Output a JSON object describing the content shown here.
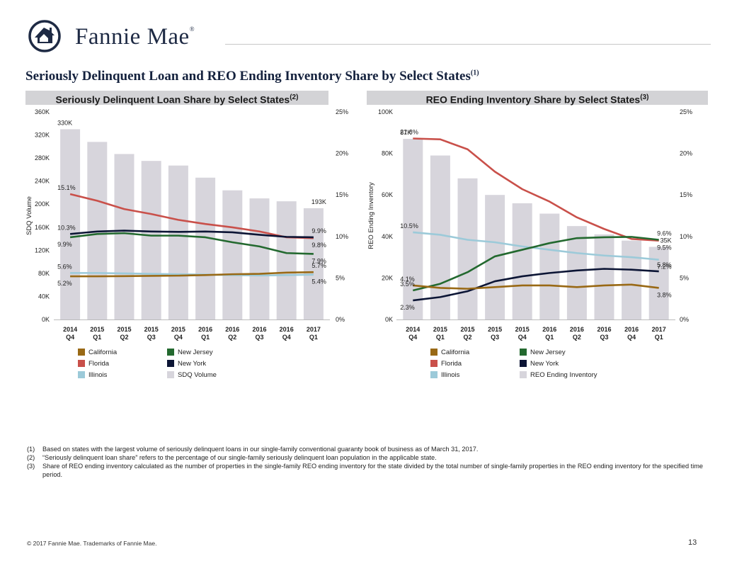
{
  "header": {
    "brand": "Fannie Mae",
    "brand_mark": "®",
    "title": "Seriously Delinquent Loan and REO Ending Inventory Share by Select States",
    "title_note": "(1)"
  },
  "colors": {
    "California": "#996915",
    "Florida": "#c9504a",
    "Illinois": "#9ccad9",
    "New Jersey": "#23692f",
    "New York": "#0c1535",
    "bars": "#d7d5dc",
    "panel_bg": "#d3d3d6"
  },
  "chart_data": [
    {
      "type": "bar",
      "title": "Seriously Delinquent Loan Share by Select States",
      "title_note": "(2)",
      "categories": [
        [
          "2014",
          "Q4"
        ],
        [
          "2015",
          "Q1"
        ],
        [
          "2015",
          "Q2"
        ],
        [
          "2015",
          "Q3"
        ],
        [
          "2015",
          "Q4"
        ],
        [
          "2016",
          "Q1"
        ],
        [
          "2016",
          "Q2"
        ],
        [
          "2016",
          "Q3"
        ],
        [
          "2016",
          "Q4"
        ],
        [
          "2017",
          "Q1"
        ]
      ],
      "ylabel": "SDQ Volume",
      "ylim": [
        0,
        360000
      ],
      "yticks": [
        "0K",
        "40K",
        "80K",
        "120K",
        "160K",
        "200K",
        "240K",
        "280K",
        "320K",
        "360K"
      ],
      "y2lim": [
        0,
        25
      ],
      "y2ticks": [
        "0%",
        "5%",
        "10%",
        "15%",
        "20%",
        "25%"
      ],
      "bar_series": {
        "name": "SDQ Volume",
        "values": [
          330000,
          308000,
          287000,
          275000,
          267000,
          246000,
          224000,
          210000,
          205000,
          193000
        ]
      },
      "line_series": [
        {
          "name": "Florida",
          "values": [
            15.1,
            14.3,
            13.3,
            12.7,
            12.0,
            11.5,
            11.1,
            10.6,
            9.9,
            9.8
          ]
        },
        {
          "name": "New York",
          "values": [
            10.3,
            10.6,
            10.7,
            10.6,
            10.55,
            10.6,
            10.5,
            10.2,
            9.95,
            9.9
          ]
        },
        {
          "name": "New Jersey",
          "values": [
            9.9,
            10.3,
            10.4,
            10.1,
            10.1,
            9.9,
            9.3,
            8.8,
            8.0,
            7.9
          ]
        },
        {
          "name": "Illinois",
          "values": [
            5.6,
            5.6,
            5.55,
            5.5,
            5.45,
            5.4,
            5.35,
            5.3,
            5.35,
            5.4
          ]
        },
        {
          "name": "California",
          "values": [
            5.2,
            5.2,
            5.22,
            5.25,
            5.28,
            5.35,
            5.45,
            5.5,
            5.65,
            5.7
          ]
        }
      ],
      "annotations": [
        {
          "text": "330K",
          "series": "bar",
          "index": 0,
          "pos": "above"
        },
        {
          "text": "193K",
          "series": "bar",
          "index": 9,
          "pos": "above"
        },
        {
          "text": "15.1%",
          "series": "Florida",
          "index": 0,
          "pos": "above"
        },
        {
          "text": "10.3%",
          "series": "New York",
          "index": 0,
          "pos": "above"
        },
        {
          "text": "9.9%",
          "series": "New Jersey",
          "index": 0,
          "pos": "below"
        },
        {
          "text": "5.6%",
          "series": "Illinois",
          "index": 0,
          "pos": "above"
        },
        {
          "text": "5.2%",
          "series": "California",
          "index": 0,
          "pos": "below"
        },
        {
          "text": "9.9%",
          "series": "New York",
          "index": 9,
          "pos": "above"
        },
        {
          "text": "9.8%",
          "series": "Florida",
          "index": 9,
          "pos": "below"
        },
        {
          "text": "7.9%",
          "series": "New Jersey",
          "index": 9,
          "pos": "below"
        },
        {
          "text": "5.7%",
          "series": "California",
          "index": 9,
          "pos": "above"
        },
        {
          "text": "5.4%",
          "series": "Illinois",
          "index": 9,
          "pos": "below"
        }
      ],
      "legend": [
        "California",
        "New Jersey",
        "Florida",
        "New York",
        "Illinois",
        "SDQ Volume"
      ]
    },
    {
      "type": "bar",
      "title": "REO Ending Inventory Share by Select States",
      "title_note": "(3)",
      "categories": [
        [
          "2014",
          "Q4"
        ],
        [
          "2015",
          "Q1"
        ],
        [
          "2015",
          "Q2"
        ],
        [
          "2015",
          "Q3"
        ],
        [
          "2015",
          "Q4"
        ],
        [
          "2016",
          "Q1"
        ],
        [
          "2016",
          "Q2"
        ],
        [
          "2016",
          "Q3"
        ],
        [
          "2016",
          "Q4"
        ],
        [
          "2017",
          "Q1"
        ]
      ],
      "ylabel": "REO Ending Inventory",
      "ylim": [
        0,
        100000
      ],
      "yticks": [
        "0K",
        "20K",
        "40K",
        "60K",
        "80K",
        "100K"
      ],
      "y2lim": [
        0,
        25
      ],
      "y2ticks": [
        "0%",
        "5%",
        "10%",
        "15%",
        "20%",
        "25%"
      ],
      "bar_series": {
        "name": "REO Ending Inventory",
        "values": [
          87000,
          79000,
          68000,
          60000,
          56000,
          51000,
          45000,
          41000,
          38000,
          35000
        ]
      },
      "line_series": [
        {
          "name": "Florida",
          "values": [
            21.8,
            21.7,
            20.5,
            17.8,
            15.7,
            14.2,
            12.3,
            10.9,
            9.7,
            9.5
          ]
        },
        {
          "name": "Illinois",
          "values": [
            10.5,
            10.2,
            9.6,
            9.3,
            8.8,
            8.4,
            8.0,
            7.7,
            7.5,
            7.2
          ]
        },
        {
          "name": "New Jersey",
          "values": [
            3.5,
            4.3,
            5.7,
            7.6,
            8.4,
            9.2,
            9.8,
            9.9,
            9.95,
            9.6
          ]
        },
        {
          "name": "New York",
          "values": [
            2.3,
            2.7,
            3.4,
            4.6,
            5.2,
            5.6,
            5.9,
            6.1,
            6.0,
            5.8
          ]
        },
        {
          "name": "California",
          "values": [
            4.1,
            3.8,
            3.7,
            3.9,
            4.1,
            4.1,
            3.9,
            4.1,
            4.2,
            3.8
          ]
        }
      ],
      "annotations": [
        {
          "text": "87K",
          "series": "bar",
          "index": 0,
          "pos": "above"
        },
        {
          "text": "35K",
          "series": "bar",
          "index": 9,
          "pos": "above"
        },
        {
          "text": "21.8%",
          "series": "Florida",
          "index": 0,
          "pos": "above"
        },
        {
          "text": "10.5%",
          "series": "Illinois",
          "index": 0,
          "pos": "above"
        },
        {
          "text": "4.1%",
          "series": "California",
          "index": 0,
          "pos": "above"
        },
        {
          "text": "3.5%",
          "series": "New Jersey",
          "index": 0,
          "pos": "above"
        },
        {
          "text": "2.3%",
          "series": "New York",
          "index": 0,
          "pos": "below"
        },
        {
          "text": "9.6%",
          "series": "New Jersey",
          "index": 9,
          "pos": "above"
        },
        {
          "text": "9.5%",
          "series": "Florida",
          "index": 9,
          "pos": "below"
        },
        {
          "text": "7.2%",
          "series": "Illinois",
          "index": 9,
          "pos": "below"
        },
        {
          "text": "5.8%",
          "series": "New York",
          "index": 9,
          "pos": "above"
        },
        {
          "text": "3.8%",
          "series": "California",
          "index": 9,
          "pos": "below"
        }
      ],
      "legend": [
        "California",
        "New Jersey",
        "Florida",
        "New York",
        "Illinois",
        "REO Ending Inventory"
      ]
    }
  ],
  "footnotes": [
    {
      "num": "(1)",
      "text": "Based on states with the largest volume of seriously delinquent loans in our single-family conventional guaranty book of business as of March 31, 2017."
    },
    {
      "num": "(2)",
      "text": "“Seriously delinquent loan share” refers to the percentage of our single-family seriously delinquent loan population in the applicable state."
    },
    {
      "num": "(3)",
      "text": "Share of REO ending inventory calculated as the number of properties in the single-family REO ending inventory for the state divided by the total number of single-family properties in the REO ending inventory for the specified time period."
    }
  ],
  "copyright": "© 2017 Fannie Mae. Trademarks of Fannie Mae.",
  "page_number": "13"
}
